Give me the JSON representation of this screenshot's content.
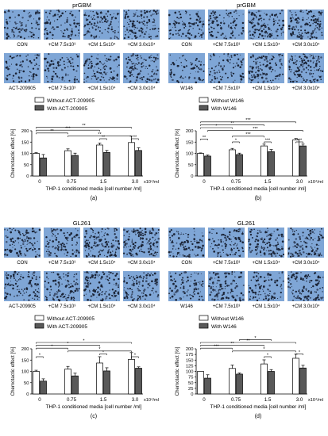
{
  "chart_data": [
    {
      "type": "bar",
      "panel_label": "(a)",
      "cell_line": "prGBM",
      "xlabel": "THP-1 conditioned media [cell number /ml]",
      "ylabel": "Chemotactic effect [%]",
      "x_unit": "x10⁴/ml",
      "categories": [
        "0",
        "0.75",
        "1.5",
        "3.0"
      ],
      "ylim": [
        0,
        200
      ],
      "yticks": [
        "0",
        "50",
        "100",
        "150",
        "200"
      ],
      "series": [
        {
          "name": "Without ACT-209905",
          "values": [
            100,
            112,
            137,
            148
          ],
          "errors": [
            3,
            8,
            9,
            28
          ],
          "color": "#ffffff"
        },
        {
          "name": "With ACT-209905",
          "values": [
            80,
            91,
            104,
            113
          ],
          "errors": [
            15,
            10,
            9,
            12
          ],
          "color": "#595959"
        }
      ],
      "significance": [
        "**",
        "***",
        "**",
        "**",
        "**",
        "**"
      ],
      "micrographs": {
        "top_row": [
          "CON",
          "+CM 7.5x10³",
          "+CM 1.5x10⁴",
          "+CM 3.0x10⁴"
        ],
        "bottom_row": [
          "ACT-209905",
          "+CM 7.5x10³",
          "+CM 1.5x10⁴",
          "+CM 3.0x10⁴"
        ]
      }
    },
    {
      "type": "bar",
      "panel_label": "(b)",
      "cell_line": "prGBM",
      "xlabel": "THP-1 conditioned media [cell number /ml]",
      "ylabel": "Chemotactic effect [%]",
      "x_unit": "x10⁴/ml",
      "categories": [
        "0",
        "0.75",
        "1.5",
        "3.0"
      ],
      "ylim": [
        0,
        200
      ],
      "yticks": [
        "0",
        "50",
        "100",
        "150",
        "200"
      ],
      "series": [
        {
          "name": "Without W146",
          "values": [
            100,
            116,
            133,
            160
          ],
          "errors": [
            2,
            6,
            8,
            6
          ],
          "color": "#ffffff"
        },
        {
          "name": "With W146",
          "values": [
            88,
            95,
            108,
            133
          ],
          "errors": [
            5,
            6,
            9,
            8
          ],
          "color": "#595959"
        }
      ],
      "significance": [
        "***",
        "**",
        "*",
        "***",
        "***",
        "*",
        "**",
        "***",
        "***"
      ],
      "micrographs": {
        "top_row": [
          "CON",
          "+CM 7.5x10³",
          "+CM 1.5x10⁴",
          "+CM 3.0x10⁴"
        ],
        "bottom_row": [
          "W146",
          "+CM 7.5x10³",
          "+CM 1.5x10⁴",
          "+CM 3.0x10⁴"
        ]
      }
    },
    {
      "type": "bar",
      "panel_label": "(c)",
      "cell_line": "GL261",
      "xlabel": "THP-1 conditioned media [cell number /ml]",
      "ylabel": "Chemotactic effect [%]",
      "x_unit": "x10⁴/ml",
      "categories": [
        "0",
        "0.75",
        "1.5",
        "3.0"
      ],
      "ylim": [
        0,
        200
      ],
      "yticks": [
        "0",
        "50",
        "100",
        "150",
        "200"
      ],
      "series": [
        {
          "name": "Without ACT-209905",
          "values": [
            100,
            110,
            137,
            153
          ],
          "errors": [
            5,
            12,
            28,
            30
          ],
          "color": "#ffffff"
        },
        {
          "name": "With ACT-209905",
          "values": [
            57,
            80,
            102,
            114
          ],
          "errors": [
            10,
            12,
            14,
            6
          ],
          "color": "#595959"
        }
      ],
      "significance": [
        "*",
        "*",
        "*",
        "*",
        "*",
        "*",
        "*"
      ],
      "micrographs": {
        "top_row": [
          "CON",
          "+CM 7.5x10³",
          "+CM 1.5x10⁴",
          "+CM 3.0x10⁴"
        ],
        "bottom_row": [
          "ACT-209905",
          "+CM 7.5x10³",
          "+CM 1.5x10⁴",
          "+CM 3.0x10⁴"
        ]
      }
    },
    {
      "type": "bar",
      "panel_label": "(d)",
      "cell_line": "GL261",
      "xlabel": "THP-1 conditioned media [cell number /ml]",
      "ylabel": "Chemotactic effect [%]",
      "x_unit": "x10⁴/ml",
      "categories": [
        "0",
        "0.75",
        "1.5",
        "3.0"
      ],
      "ylim": [
        0,
        200
      ],
      "yticks": [
        "0",
        "25",
        "50",
        "75",
        "100",
        "125",
        "150",
        "175",
        "200"
      ],
      "series": [
        {
          "name": "Without W146",
          "values": [
            100,
            113,
            133,
            158
          ],
          "errors": [
            0,
            15,
            18,
            18
          ],
          "color": "#ffffff"
        },
        {
          "name": "With W146",
          "values": [
            70,
            88,
            100,
            115
          ],
          "errors": [
            15,
            5,
            8,
            12
          ],
          "color": "#595959"
        }
      ],
      "significance": [
        "**",
        "**",
        "***",
        "*",
        "*",
        "*",
        "*"
      ],
      "micrographs": {
        "top_row": [
          "CON",
          "+CM 7.5x10³",
          "+CM 1.5x10⁴",
          "+CM 3.0x10⁴"
        ],
        "bottom_row": [
          "W146",
          "+CM 7.5x10³",
          "+CM 1.5x10⁴",
          "+CM 3.0x10⁴"
        ]
      }
    }
  ]
}
